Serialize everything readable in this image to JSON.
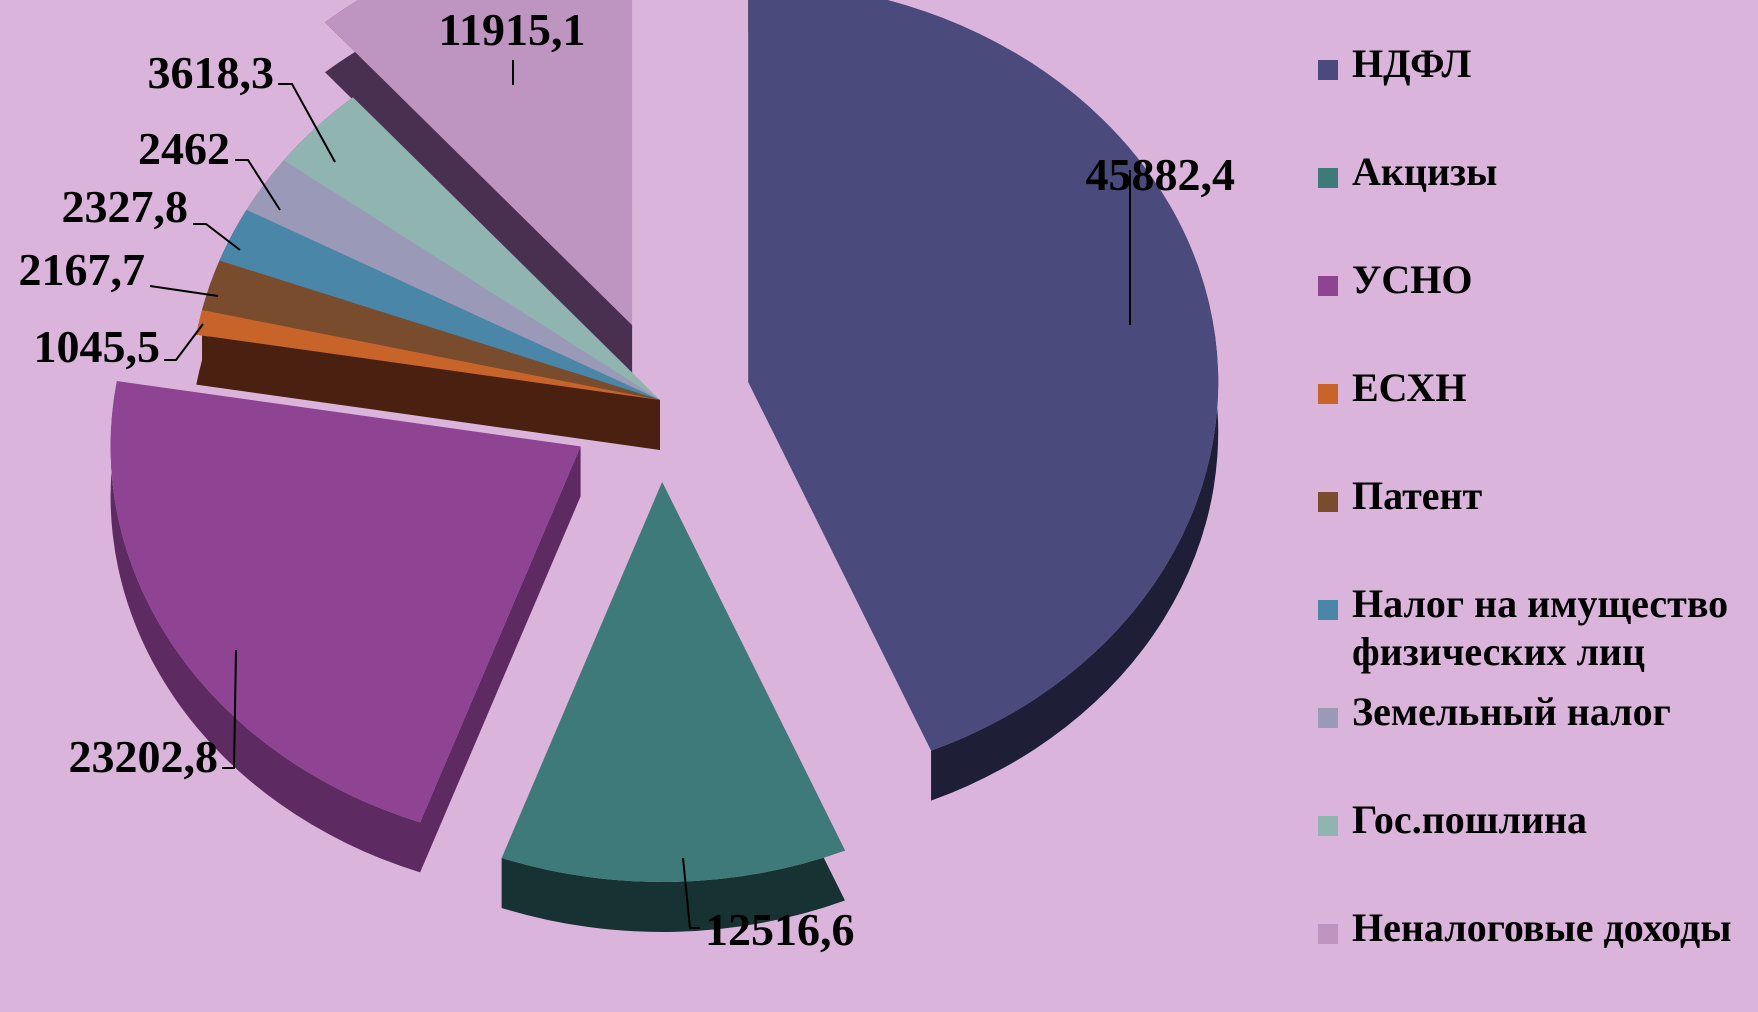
{
  "chart_data": {
    "type": "pie",
    "title": "",
    "legend_position": "right",
    "labels": [
      "НДФЛ",
      "Акцизы",
      "УСНО",
      "ЕСХН",
      "Патент",
      "Налог на имущество физических лиц",
      "Земельный налог",
      "Гос.пошлина",
      "Неналоговые доходы"
    ],
    "values": [
      45882.4,
      12516.6,
      23202.8,
      1045.5,
      2167.7,
      2327.8,
      2462,
      3618.3,
      11915.1
    ],
    "value_labels": [
      "45882,4",
      "12516,6",
      "23202,8",
      "1045,5",
      "2167,7",
      "2327,8",
      "2462",
      "3618,3",
      "11915,1"
    ],
    "colors": [
      "#4a4a7c",
      "#3e7a7a",
      "#8e4492",
      "#c8642a",
      "#7a4c2e",
      "#4a86a8",
      "#9a9ab8",
      "#90b4b0",
      "#be94c0"
    ],
    "side_colors": [
      "#1e1e36",
      "#173232",
      "#5e2a62",
      "#4a2010",
      "#4a2010",
      "#25485e",
      "#5c5c76",
      "#4e6e6a",
      "#4a3050"
    ]
  }
}
